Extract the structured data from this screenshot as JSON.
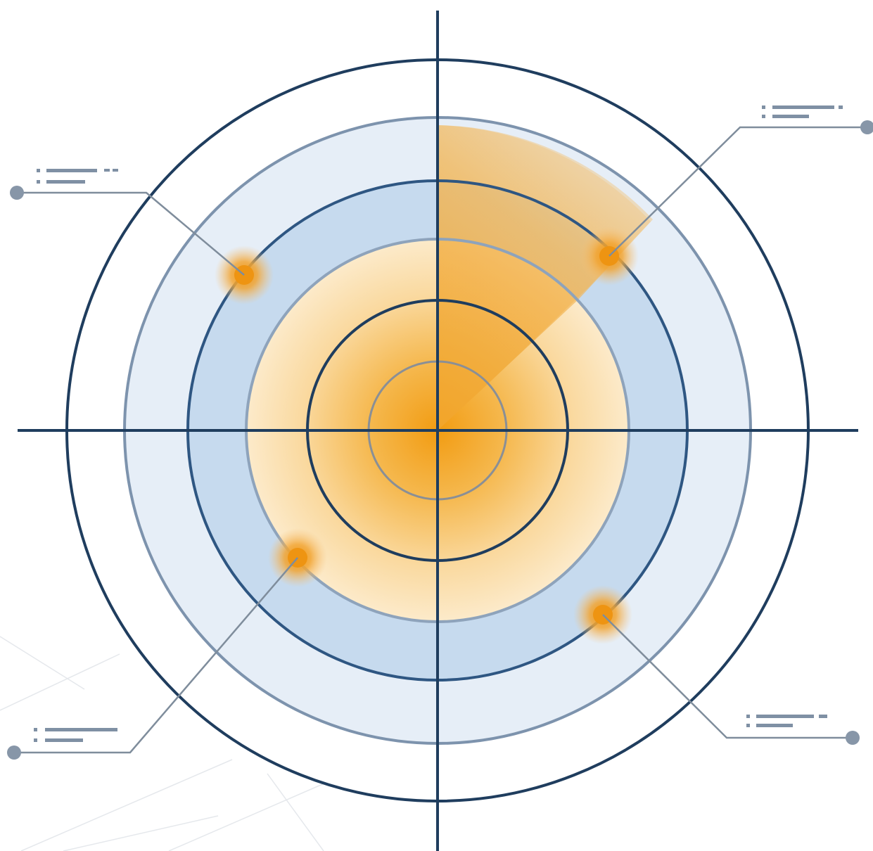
{
  "diagram": {
    "type": "radar-target",
    "rings": 7,
    "crosshair": true,
    "highlight_sector": {
      "quadrant": "upper-right",
      "color": "#f0a31c"
    },
    "markers": [
      {
        "id": "upper-left",
        "quadrant": "upper-left",
        "callout_side": "left"
      },
      {
        "id": "upper-right",
        "quadrant": "upper-right",
        "callout_side": "right"
      },
      {
        "id": "lower-left",
        "quadrant": "lower-left",
        "callout_side": "left"
      },
      {
        "id": "lower-right",
        "quadrant": "lower-right",
        "callout_side": "right"
      }
    ],
    "colors": {
      "ring_dark": "#1f3d5e",
      "ring_mid": "#6f89a6",
      "band_light": "#e6eef7",
      "band_blue": "#c6daee",
      "core_orange": "#f29c12",
      "core_cream": "#fbe6c0",
      "marker": "#f0a025",
      "callout_dot": "#8796a8",
      "placeholder_text": "#7f90a4"
    }
  }
}
